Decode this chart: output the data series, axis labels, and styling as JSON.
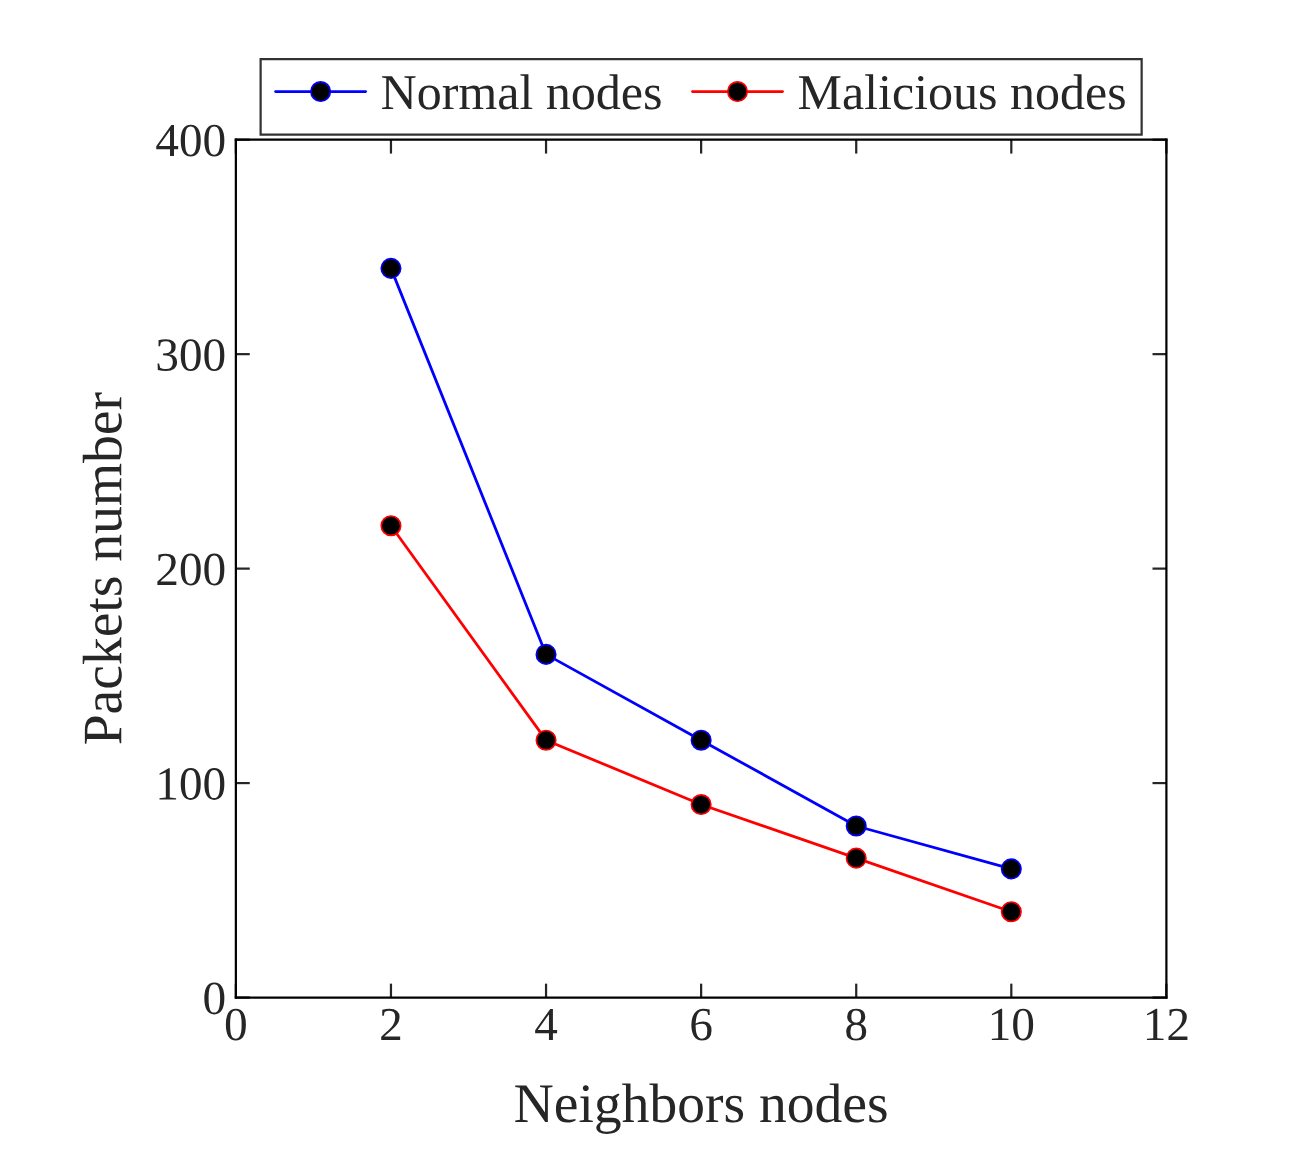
{
  "chart_data": {
    "type": "line",
    "xlabel": "Neighbors nodes",
    "ylabel": "Packets number",
    "x": [
      2,
      4,
      6,
      8,
      10
    ],
    "series": [
      {
        "name": "Normal nodes",
        "color": "#0000ff",
        "values": [
          340,
          160,
          120,
          80,
          60
        ]
      },
      {
        "name": "Malicious nodes",
        "color": "#ff0000",
        "values": [
          220,
          120,
          90,
          65,
          40
        ]
      }
    ],
    "xlim": [
      0,
      12
    ],
    "xticks": [
      0,
      2,
      4,
      6,
      8,
      10,
      12
    ],
    "ylim": [
      0,
      400
    ],
    "yticks": [
      0,
      100,
      200,
      300,
      400
    ],
    "grid": false,
    "legend": "top",
    "marker": "circle",
    "line_style": "solid"
  }
}
